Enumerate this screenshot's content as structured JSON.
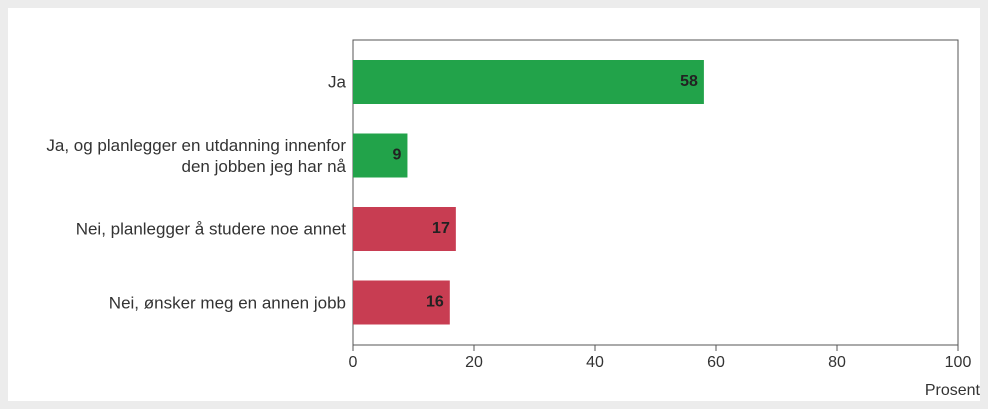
{
  "chart_data": {
    "type": "bar",
    "orientation": "horizontal",
    "categories": [
      "Ja",
      "Ja, og planlegger en utdanning innenfor den jobben jeg har nå",
      "Nei, planlegger å studere noe annet",
      "Nei, ønsker meg en annen jobb"
    ],
    "values": [
      58,
      9,
      17,
      16
    ],
    "colors": [
      "#22a34a",
      "#22a34a",
      "#c83d52",
      "#c83d52"
    ],
    "xlim": [
      0,
      100
    ],
    "xticks": [
      0,
      20,
      40,
      60,
      80,
      100
    ],
    "xlabel": "Prosent"
  }
}
